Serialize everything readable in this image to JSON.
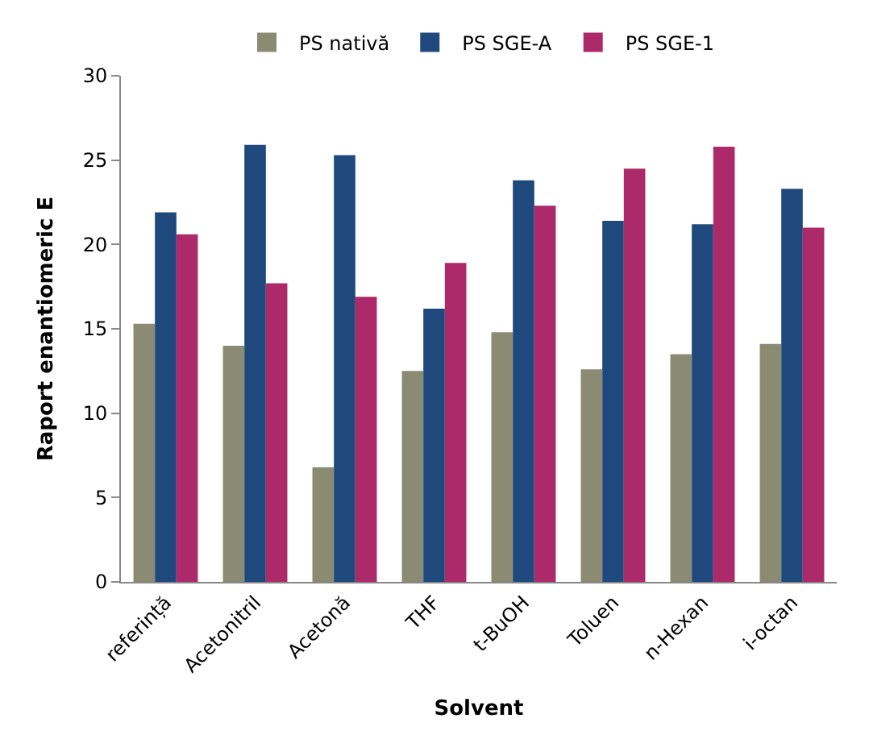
{
  "chart_data": {
    "type": "bar",
    "xlabel": "Solvent",
    "ylabel": "Raport enantiomeric E",
    "categories": [
      "referință",
      "Acetonitril",
      "Acetonă",
      "THF",
      "t-BuOH",
      "Toluen",
      "n-Hexan",
      "i-octan"
    ],
    "series": [
      {
        "name": "PS nativă",
        "color": "#8b8b73",
        "values": [
          15.3,
          14.0,
          6.8,
          12.5,
          14.8,
          12.6,
          13.5,
          14.1
        ]
      },
      {
        "name": "PS SGE-A",
        "color": "#1f497d",
        "values": [
          21.9,
          25.9,
          25.3,
          16.2,
          23.8,
          21.4,
          21.2,
          23.3
        ]
      },
      {
        "name": "PS SGE-1",
        "color": "#ad2a6a",
        "values": [
          20.6,
          17.7,
          16.9,
          18.9,
          22.3,
          24.5,
          25.8,
          21.0
        ]
      }
    ],
    "ylim": [
      0,
      30
    ],
    "yticks": [
      0,
      5,
      10,
      15,
      20,
      25,
      30
    ],
    "grid": false,
    "legend": "top"
  }
}
